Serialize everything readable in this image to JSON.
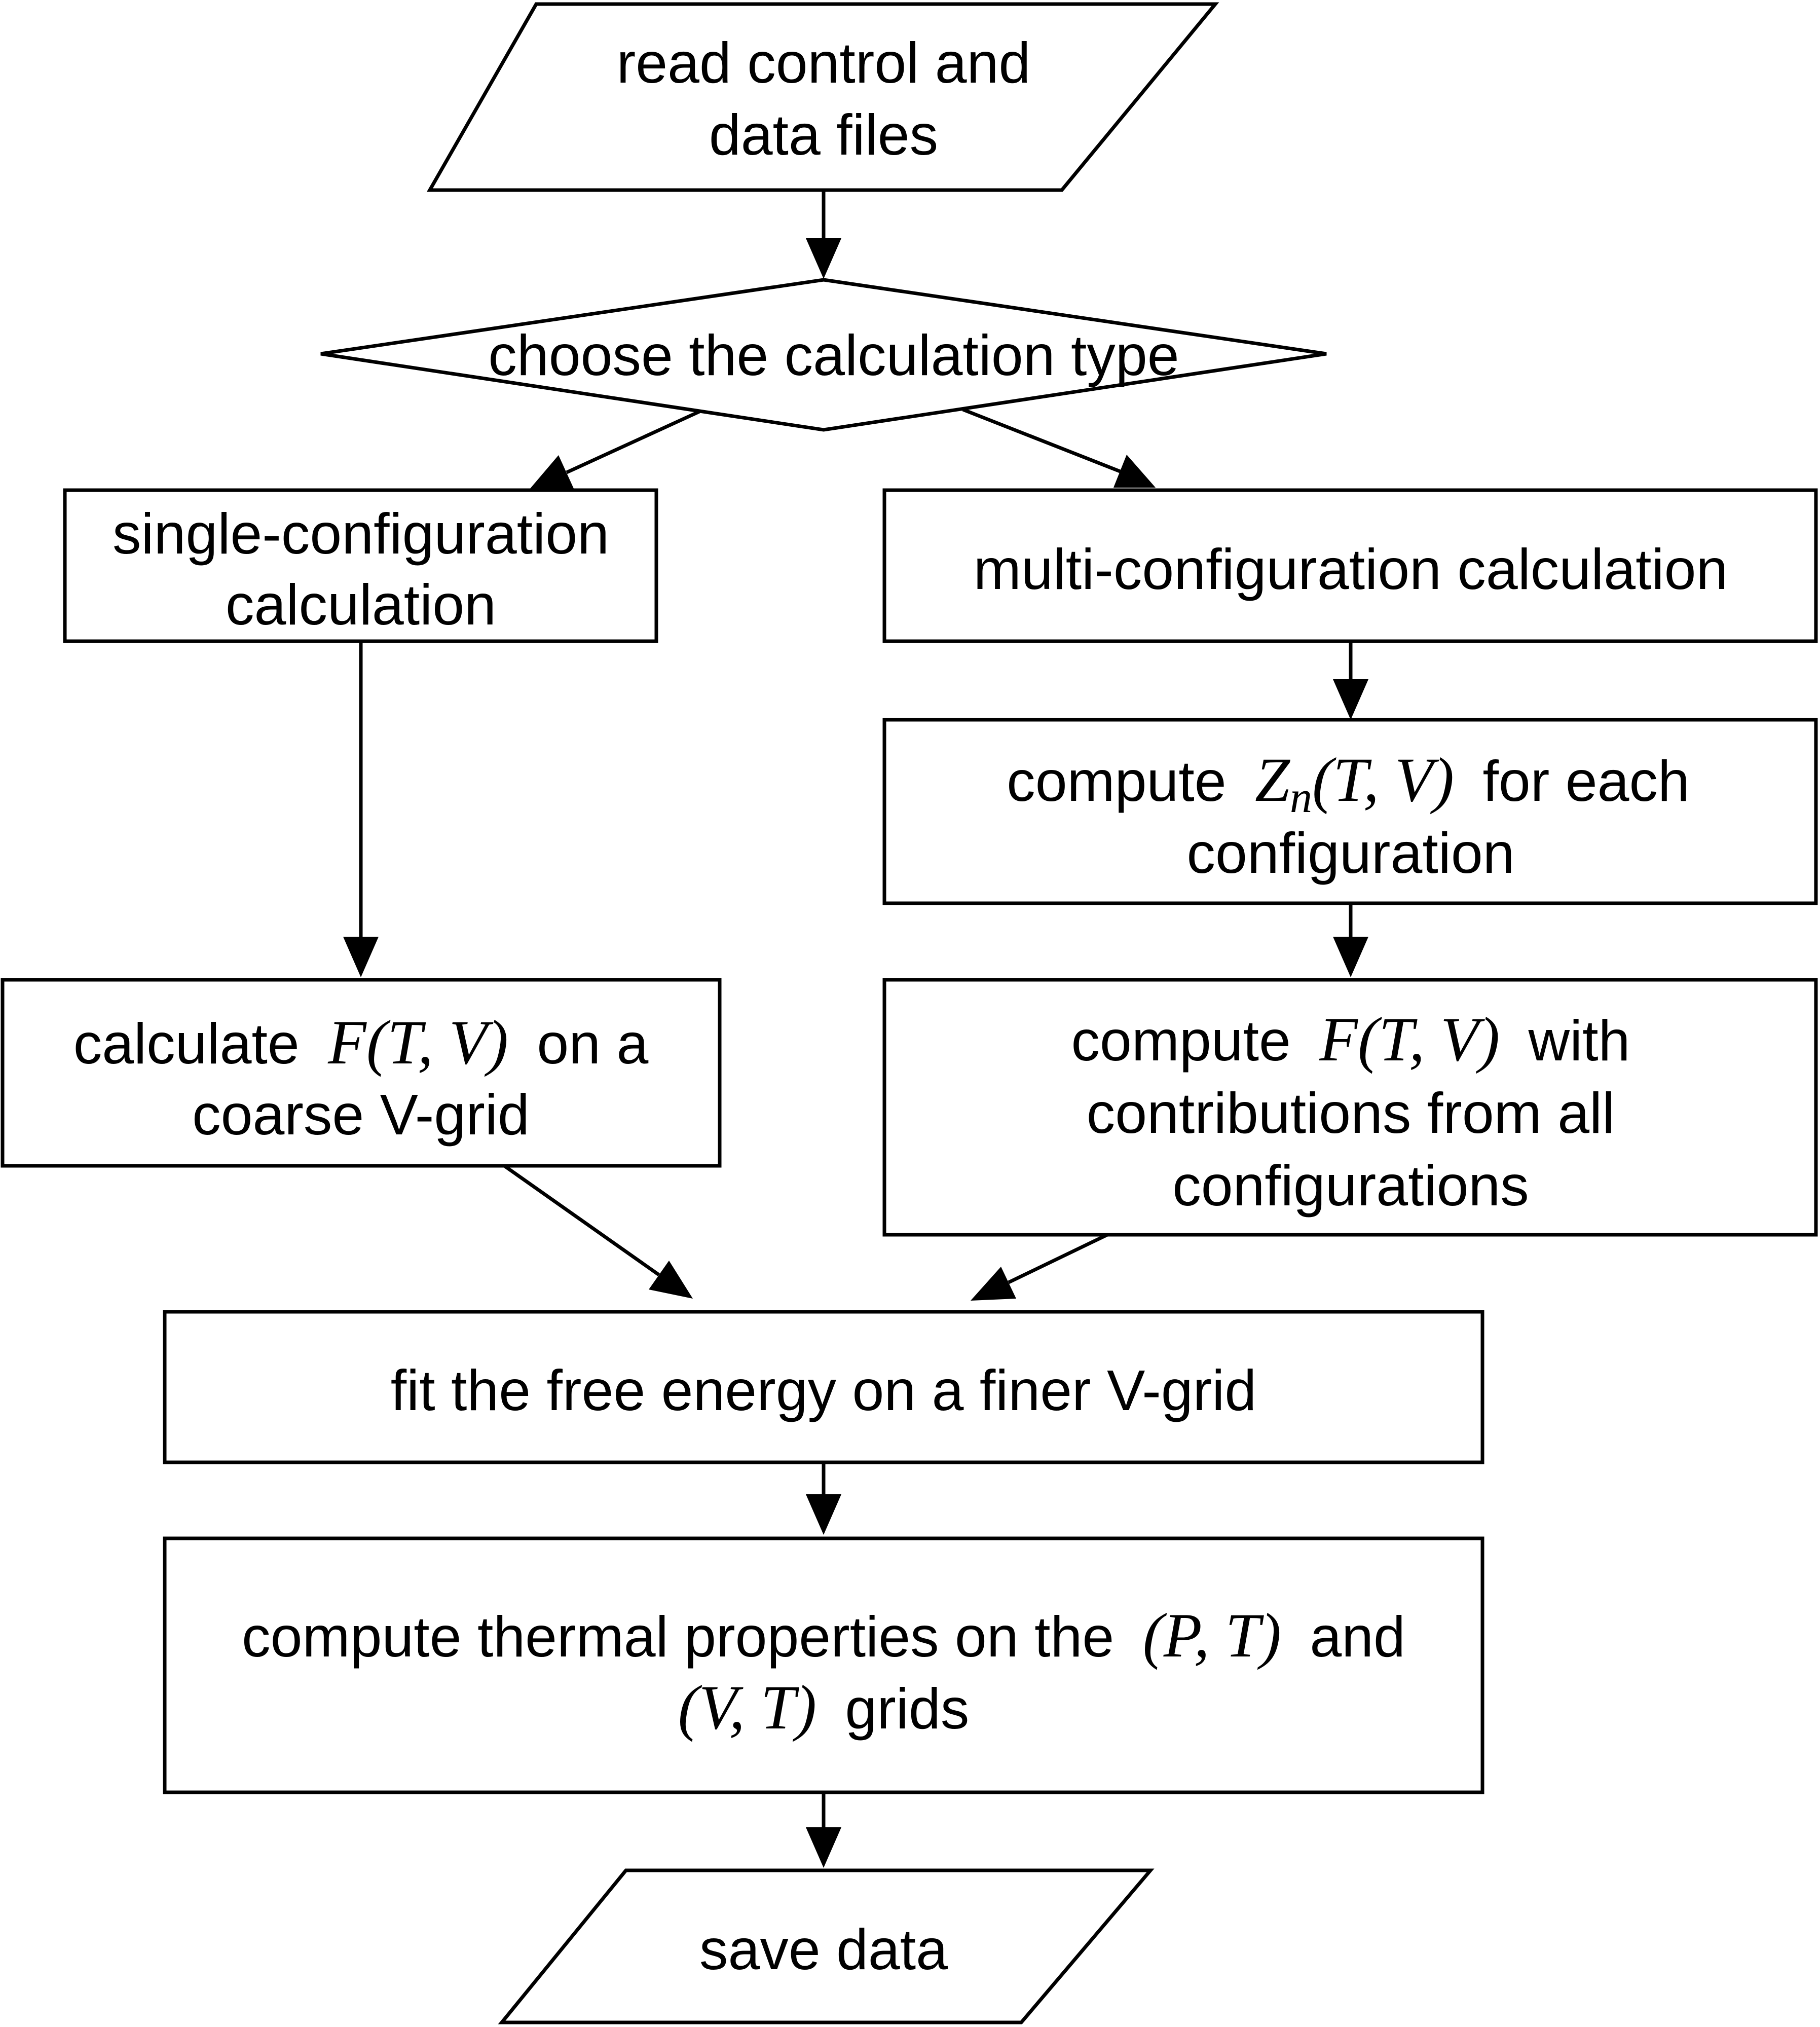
{
  "nodes": {
    "read": {
      "line1": "read control and",
      "line2": "data files"
    },
    "choose": {
      "line1": "choose the calculation type"
    },
    "single": {
      "line1": "single-configuration",
      "line2": "calculation"
    },
    "multi": {
      "line1": "multi-configuration calculation"
    },
    "compute_z": {
      "pre": "compute",
      "math_var": "Z",
      "math_sub": "n",
      "math_args": "(T, V)",
      "post": "for each",
      "line2": "configuration"
    },
    "calc_f": {
      "pre": "calculate",
      "math_var": "F",
      "math_args": "(T, V)",
      "post": "on a",
      "line2": "coarse V-grid"
    },
    "compute_f": {
      "pre": "compute",
      "math_var": "F",
      "math_args": "(T, V)",
      "post": "with",
      "line2": "contributions from all",
      "line3": "configurations"
    },
    "fit": {
      "line1": "fit the free energy on a finer V-grid"
    },
    "thermal": {
      "pre": "compute thermal properties on the",
      "math1": "(P, T)",
      "mid": "and",
      "math2": "(V, T)",
      "post": "grids"
    },
    "save": {
      "line1": "save data"
    }
  }
}
